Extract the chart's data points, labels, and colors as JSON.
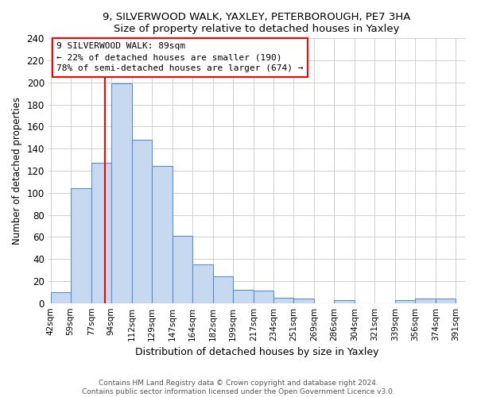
{
  "title1": "9, SILVERWOOD WALK, YAXLEY, PETERBOROUGH, PE7 3HA",
  "title2": "Size of property relative to detached houses in Yaxley",
  "xlabel": "Distribution of detached houses by size in Yaxley",
  "ylabel": "Number of detached properties",
  "bar_labels": [
    "42sqm",
    "59sqm",
    "77sqm",
    "94sqm",
    "112sqm",
    "129sqm",
    "147sqm",
    "164sqm",
    "182sqm",
    "199sqm",
    "217sqm",
    "234sqm",
    "251sqm",
    "269sqm",
    "286sqm",
    "304sqm",
    "321sqm",
    "339sqm",
    "356sqm",
    "374sqm",
    "391sqm"
  ],
  "bar_heights": [
    10,
    104,
    127,
    199,
    148,
    124,
    61,
    35,
    24,
    12,
    11,
    5,
    4,
    0,
    3,
    0,
    0,
    3,
    4,
    4
  ],
  "bar_color": "#c6d9f0",
  "bar_edge_color": "#5b8fcc",
  "vline_x": 89,
  "vline_color": "red",
  "annotation_title": "9 SILVERWOOD WALK: 89sqm",
  "annotation_line1": "← 22% of detached houses are smaller (190)",
  "annotation_line2": "78% of semi-detached houses are larger (674) →",
  "annotation_box_color": "white",
  "annotation_box_edge": "red",
  "ylim": [
    0,
    240
  ],
  "yticks": [
    0,
    20,
    40,
    60,
    80,
    100,
    120,
    140,
    160,
    180,
    200,
    220,
    240
  ],
  "footnote1": "Contains HM Land Registry data © Crown copyright and database right 2024.",
  "footnote2": "Contains public sector information licensed under the Open Government Licence v3.0.",
  "bin_edges": [
    42,
    59,
    77,
    94,
    112,
    129,
    147,
    164,
    182,
    199,
    217,
    234,
    251,
    269,
    286,
    304,
    321,
    339,
    356,
    374,
    391
  ]
}
